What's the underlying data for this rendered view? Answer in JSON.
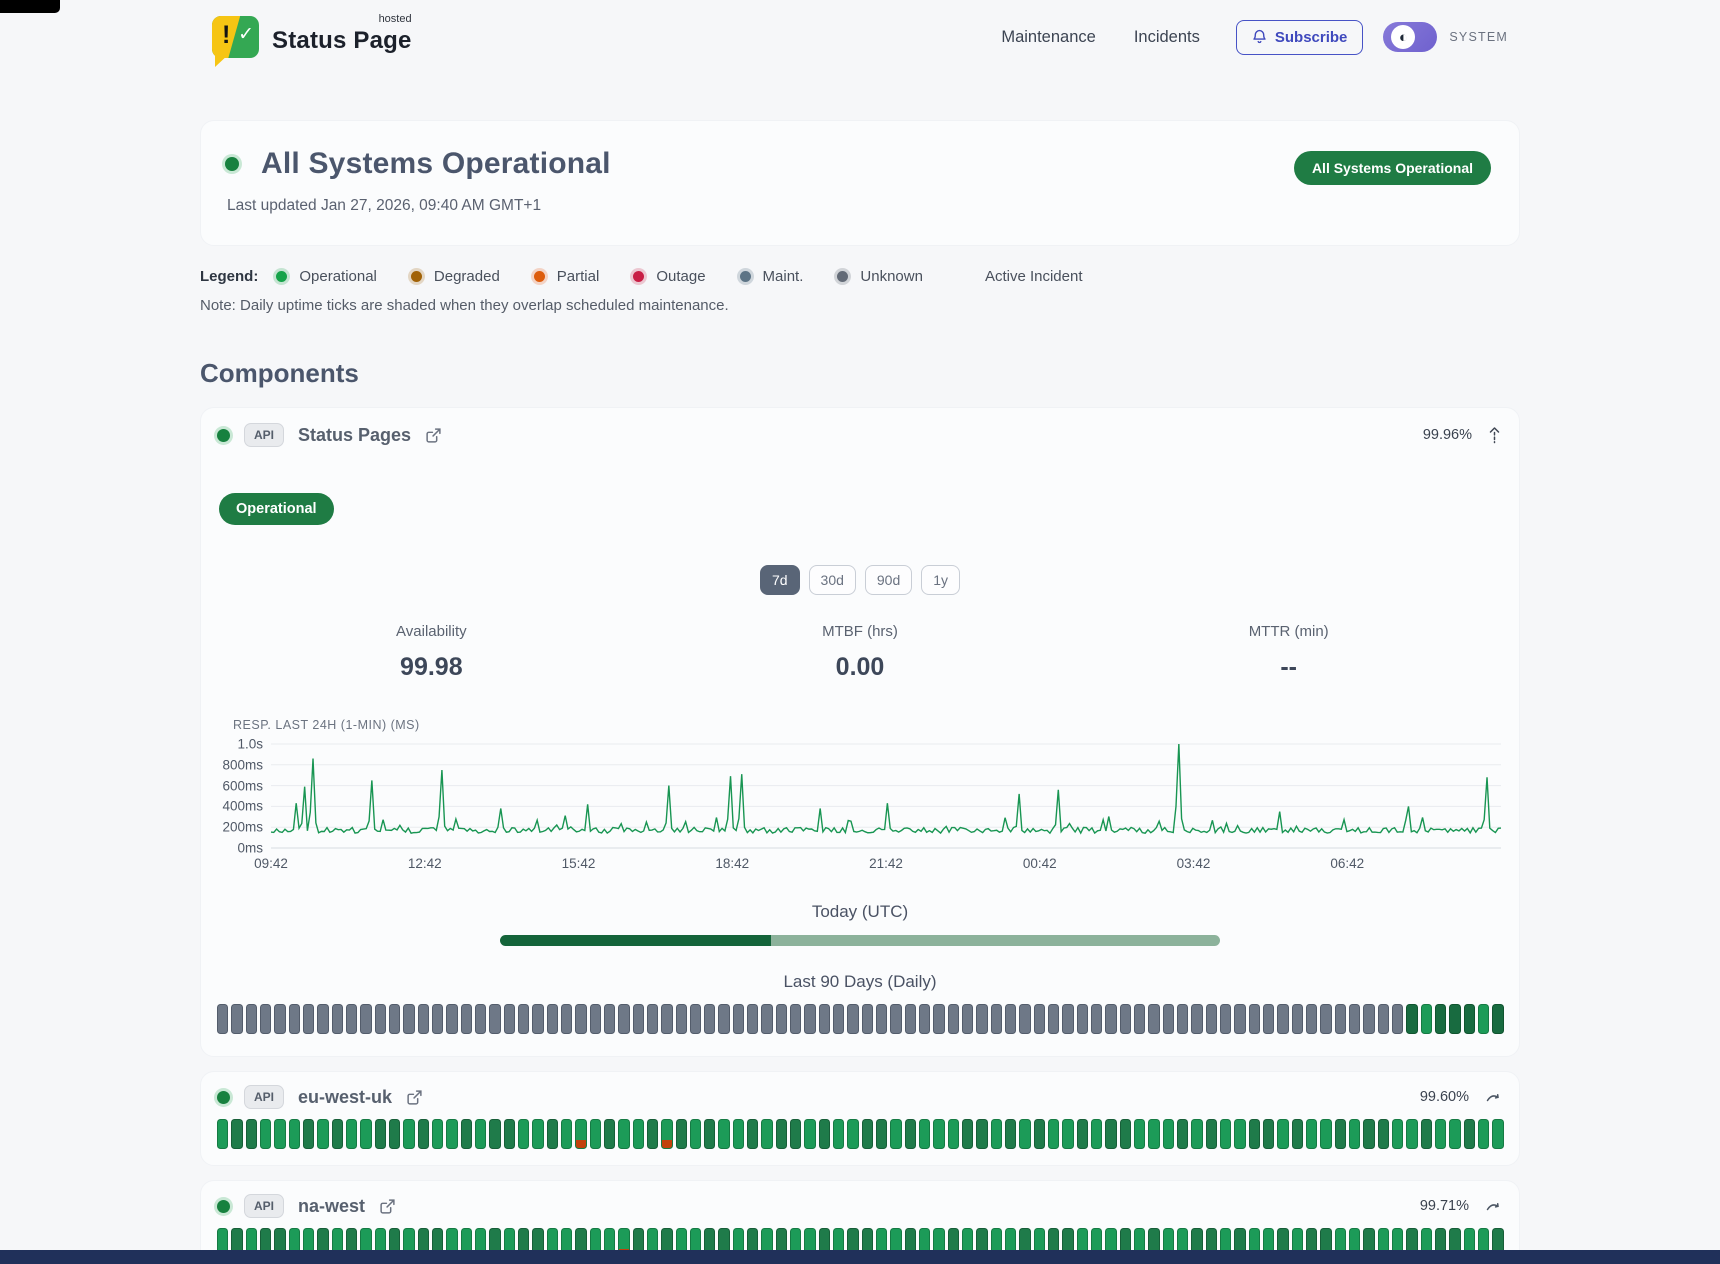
{
  "theme": {
    "accent_green": "#1f7c44",
    "indigo": "#4550c5",
    "toggle_purple": "#7b6fd2",
    "footer_navy": "#20305a",
    "tick_gray": "#6e7887",
    "chart_green": "#189552"
  },
  "header": {
    "brand": {
      "name": "Status Page",
      "superscript": "hosted"
    },
    "nav": [
      {
        "label": "Maintenance"
      },
      {
        "label": "Incidents"
      }
    ],
    "subscribe_label": "Subscribe",
    "theme_label": "SYSTEM"
  },
  "hero": {
    "title": "All Systems Operational",
    "last_updated": "Last updated Jan 27, 2026, 09:40 AM GMT+1",
    "badge": "All Systems Operational"
  },
  "legend": {
    "label": "Legend:",
    "items": [
      {
        "label": "Operational",
        "color": "#16a34a",
        "halo": "rgba(22,163,74,0.22)"
      },
      {
        "label": "Degraded",
        "color": "#a16207",
        "halo": "rgba(161,98,7,0.22)"
      },
      {
        "label": "Partial",
        "color": "#dd5c0c",
        "halo": "rgba(234,88,12,0.22)"
      },
      {
        "label": "Outage",
        "color": "#c81e45",
        "halo": "rgba(200,30,69,0.22)"
      },
      {
        "label": "Maint.",
        "color": "#5d7486",
        "halo": "rgba(93,116,134,0.25)"
      },
      {
        "label": "Unknown",
        "color": "#636b77",
        "halo": "rgba(99,107,119,0.25)"
      }
    ],
    "active_incident_label": "Active Incident",
    "note": "Note: Daily uptime ticks are shaded when they overlap scheduled maintenance."
  },
  "components": {
    "heading": "Components",
    "tick_legend": {
      "g": "operational",
      "d": "operational-dark",
      "D": "operational-darker",
      "u": "unknown",
      "p": "operational-partial-overlap"
    },
    "expanded": {
      "tag": "API",
      "name": "Status Pages",
      "uptime": "99.96%",
      "status_badge": "Operational",
      "ranges": [
        "7d",
        "30d",
        "90d",
        "1y"
      ],
      "active_range": "7d",
      "stats": [
        {
          "label": "Availability",
          "value": "99.98"
        },
        {
          "label": "MTBF (hrs)",
          "value": "0.00"
        },
        {
          "label": "MTTR (min)",
          "value": "--"
        }
      ],
      "chart": {
        "type": "line",
        "label": "RESP. LAST 24H (1-MIN) (MS)",
        "y_ticks": [
          "1.0s",
          "800ms",
          "600ms",
          "400ms",
          "200ms",
          "0ms"
        ],
        "y_max_ms": 1000,
        "x_ticks": [
          "09:42",
          "12:42",
          "15:42",
          "18:42",
          "21:42",
          "00:42",
          "03:42",
          "06:42"
        ],
        "baseline_ms": 170,
        "line_color": "#189552",
        "spikes": [
          [
            0.021,
            430
          ],
          [
            0.027,
            590
          ],
          [
            0.034,
            860
          ],
          [
            0.083,
            650
          ],
          [
            0.138,
            750
          ],
          [
            0.186,
            380
          ],
          [
            0.257,
            420
          ],
          [
            0.323,
            600
          ],
          [
            0.373,
            690
          ],
          [
            0.382,
            710
          ],
          [
            0.446,
            380
          ],
          [
            0.5,
            430
          ],
          [
            0.609,
            520
          ],
          [
            0.639,
            560
          ],
          [
            0.738,
            1000
          ],
          [
            0.82,
            350
          ],
          [
            0.925,
            400
          ],
          [
            0.989,
            680
          ]
        ]
      },
      "today_label": "Today (UTC)",
      "today_progress_pct": 37.6,
      "history_label": "Last 90 Days (Daily)",
      "ticks": "uuuuuuuuuuuuuuuuuuuuuuuuuuuuuuuuuuuuuuuuuuuuuuuuuuuuuuuuuuuuuuuuuuuuuuuuuuuuuuuuuuuDgDDDgD"
    },
    "rows": [
      {
        "tag": "API",
        "name": "eu-west-uk",
        "uptime": "99.60%",
        "ticks": "gddgggdgdggddgdggdgddggdgpgdggdpdgdggdgddgdggddgdgggddgdgdggdgddgggdgdggddgdggdgddggdggdgg"
      },
      {
        "tag": "API",
        "name": "na-west",
        "uptime": "99.71%",
        "ticks": "gdgddggdgdggdgddgggdgddggdggpdgdggddgdgdggdgddggdggdgdggdgddgggdgdggddgdggdgddggdggdgddggd"
      }
    ]
  }
}
